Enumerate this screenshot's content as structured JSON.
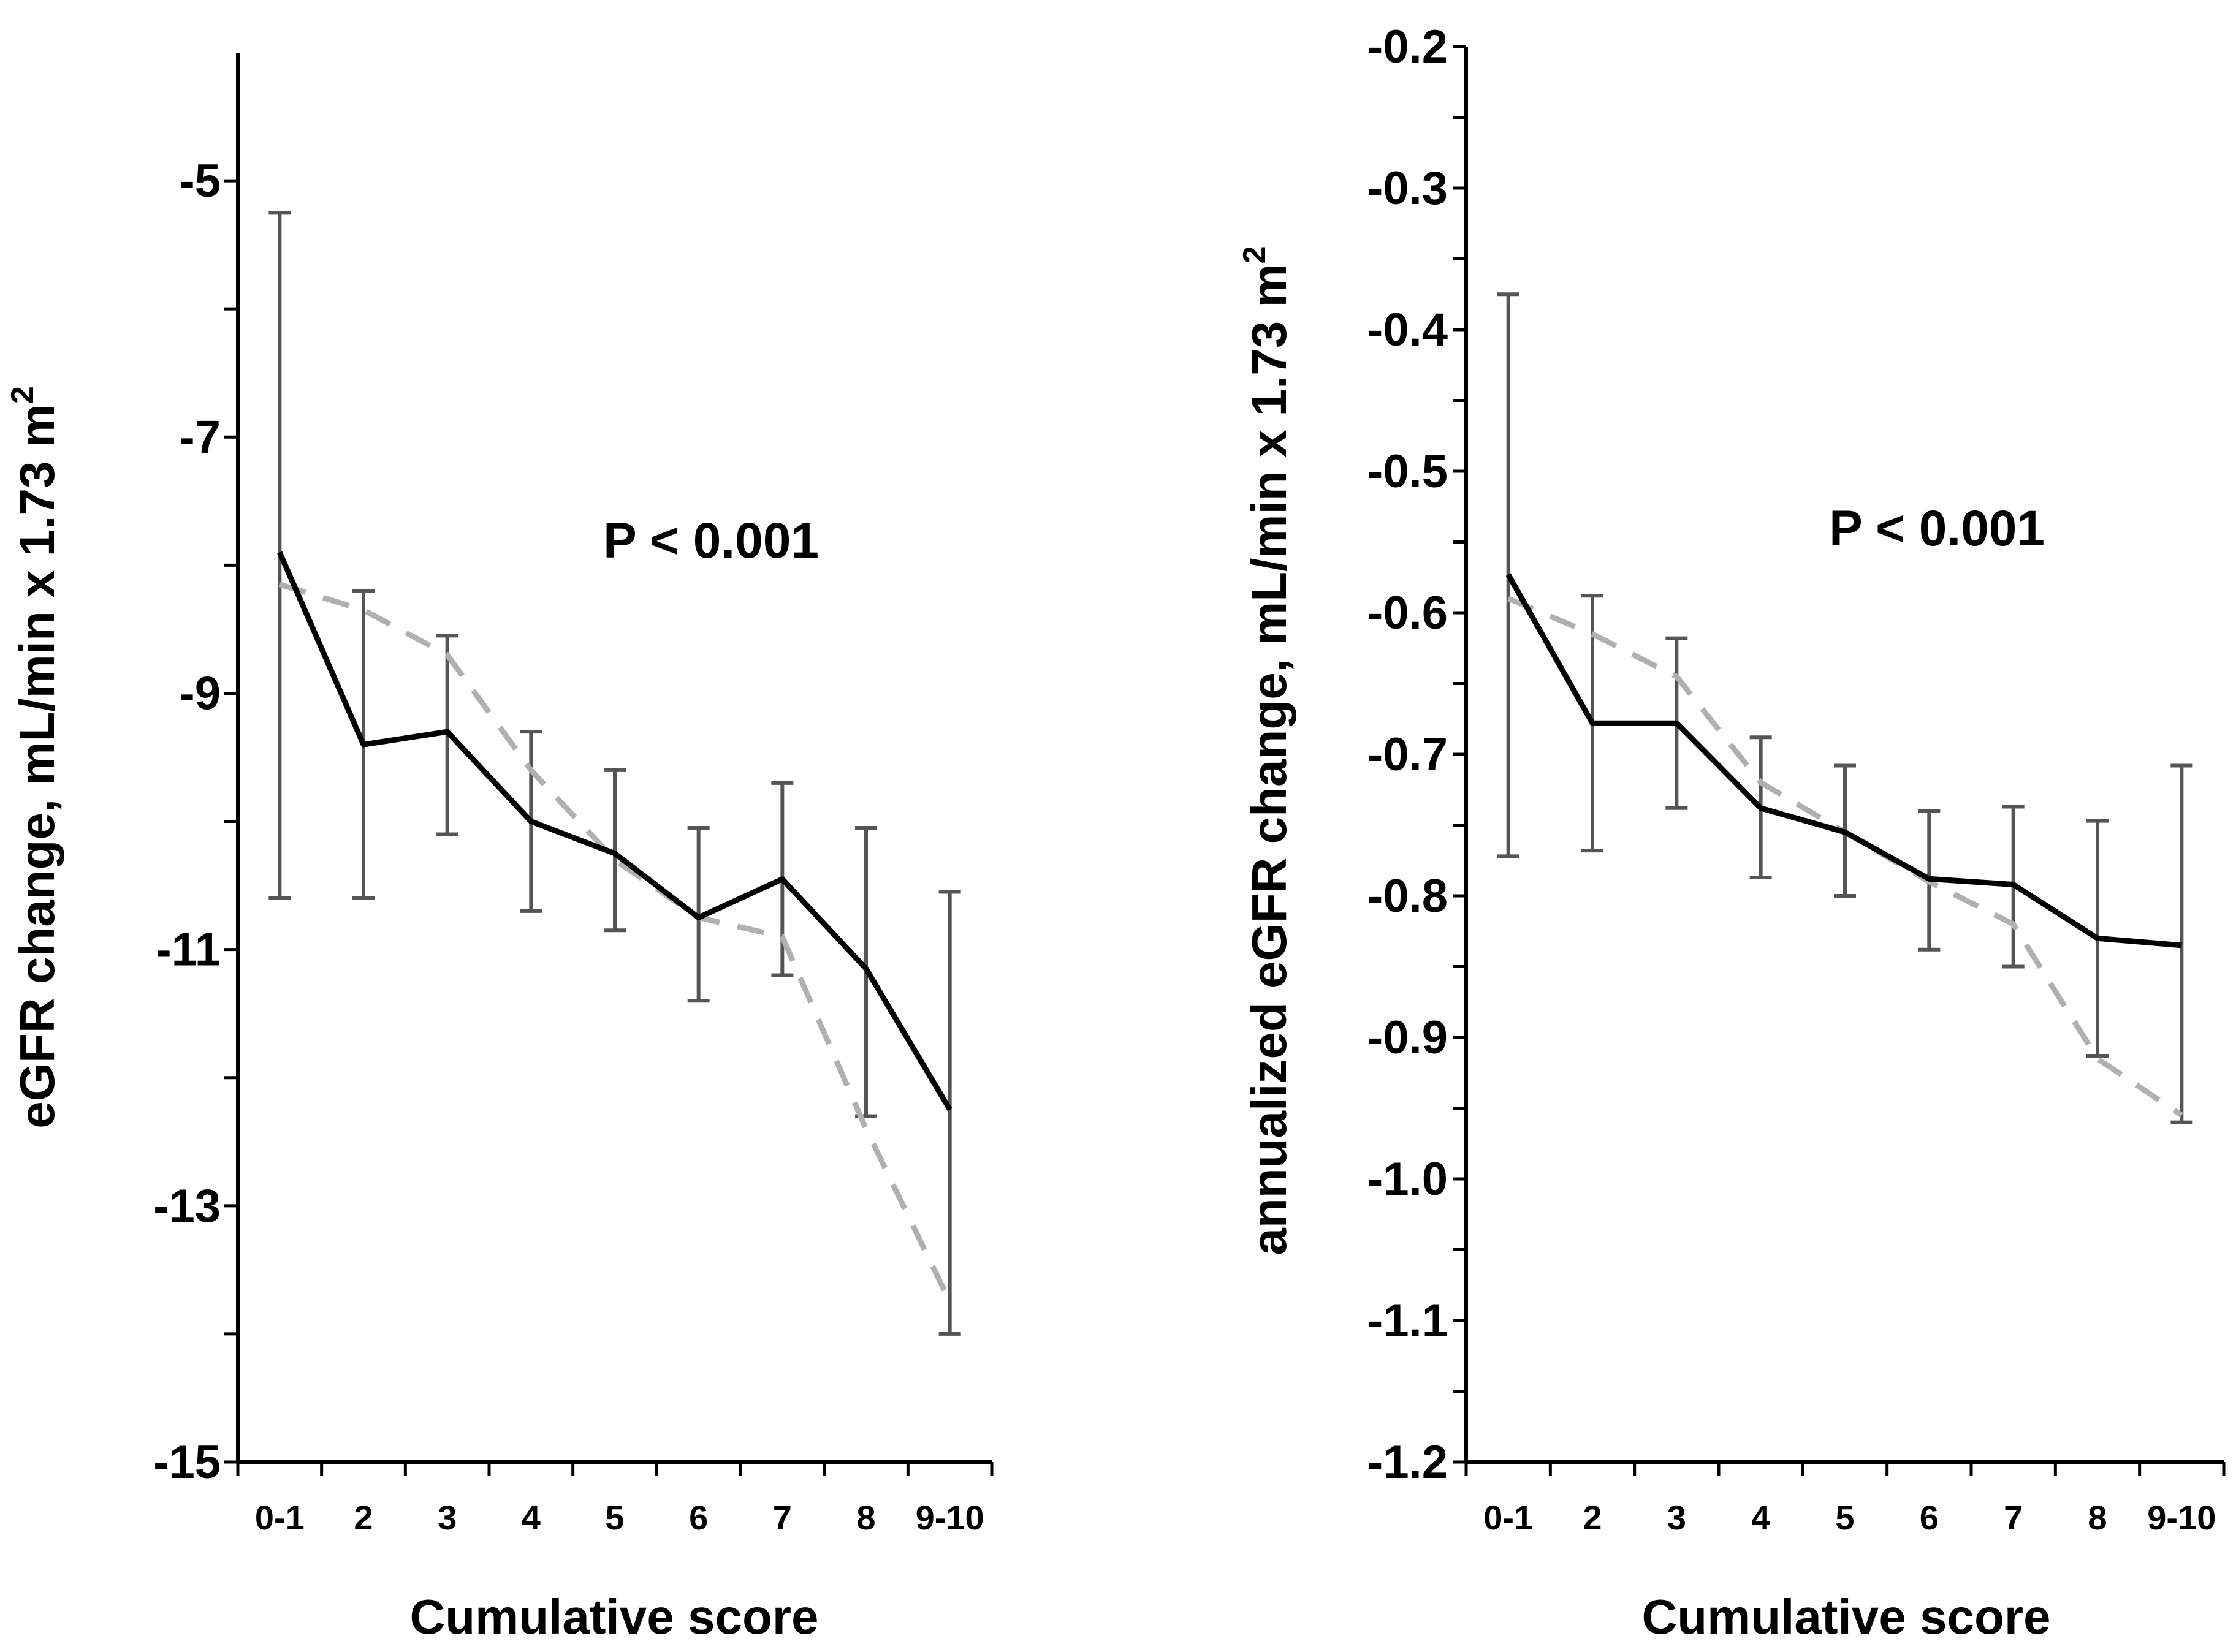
{
  "chart_data": [
    {
      "type": "line",
      "categories": [
        "0-1",
        "2",
        "3",
        "4",
        "5",
        "6",
        "7",
        "8",
        "9-10"
      ],
      "xlabel": "Cumulative score",
      "ylabel": "eGFR change, mL/min x 1.73 m",
      "ylabel_superscript": "2",
      "ylim": [
        -15,
        -4
      ],
      "yticks": [
        -15,
        -13,
        -11,
        -9,
        -7,
        -5
      ],
      "ytick_labels": [
        "-15",
        "-13",
        "-11",
        "-9",
        "-7",
        "-5"
      ],
      "annotation": "P < 0.001",
      "grid": false,
      "legend": "none",
      "series": [
        {
          "style": "solid",
          "color": "#000000",
          "values": [
            -7.9,
            -9.4,
            -9.3,
            -10.0,
            -10.25,
            -10.75,
            -10.45,
            -11.15,
            -12.25
          ],
          "error_low": [
            -10.6,
            -10.6,
            -10.1,
            -10.7,
            -10.85,
            -11.4,
            -11.2,
            -12.3,
            -14.0
          ],
          "error_high": [
            -5.25,
            -8.2,
            -8.55,
            -9.3,
            -9.6,
            -10.05,
            -9.7,
            -10.05,
            -10.55
          ]
        },
        {
          "style": "dashed",
          "color": "#b0b0b0",
          "values": [
            -8.15,
            -8.35,
            -8.7,
            -9.6,
            -10.3,
            -10.75,
            -10.9,
            -12.4,
            -13.75
          ]
        }
      ]
    },
    {
      "type": "line",
      "categories": [
        "0-1",
        "2",
        "3",
        "4",
        "5",
        "6",
        "7",
        "8",
        "9-10"
      ],
      "xlabel": "Cumulative score",
      "ylabel": "annualized eGFR change, mL/min x 1.73 m",
      "ylabel_superscript": "2",
      "ylim": [
        -1.2,
        -0.2
      ],
      "yticks": [
        -1.2,
        -1.1,
        -1.0,
        -0.9,
        -0.8,
        -0.7,
        -0.6,
        -0.5,
        -0.4,
        -0.3,
        -0.2
      ],
      "ytick_labels": [
        "-1.2",
        "-1.1",
        "-1.0",
        "-0.9",
        "-0.8",
        "-0.7",
        "-0.6",
        "-0.5",
        "-0.4",
        "-0.3",
        "-0.2"
      ],
      "annotation": "P < 0.001",
      "grid": false,
      "legend": "none",
      "series": [
        {
          "style": "solid",
          "color": "#000000",
          "values": [
            -0.573,
            -0.678,
            -0.678,
            -0.738,
            -0.755,
            -0.788,
            -0.792,
            -0.83,
            -0.835
          ],
          "error_low": [
            -0.772,
            -0.768,
            -0.738,
            -0.787,
            -0.8,
            -0.838,
            -0.85,
            -0.913,
            -0.96
          ],
          "error_high": [
            -0.375,
            -0.588,
            -0.618,
            -0.688,
            -0.708,
            -0.74,
            -0.737,
            -0.747,
            -0.708
          ]
        },
        {
          "style": "dashed",
          "color": "#b0b0b0",
          "values": [
            -0.59,
            -0.615,
            -0.645,
            -0.72,
            -0.755,
            -0.79,
            -0.82,
            -0.915,
            -0.955
          ]
        }
      ]
    }
  ]
}
